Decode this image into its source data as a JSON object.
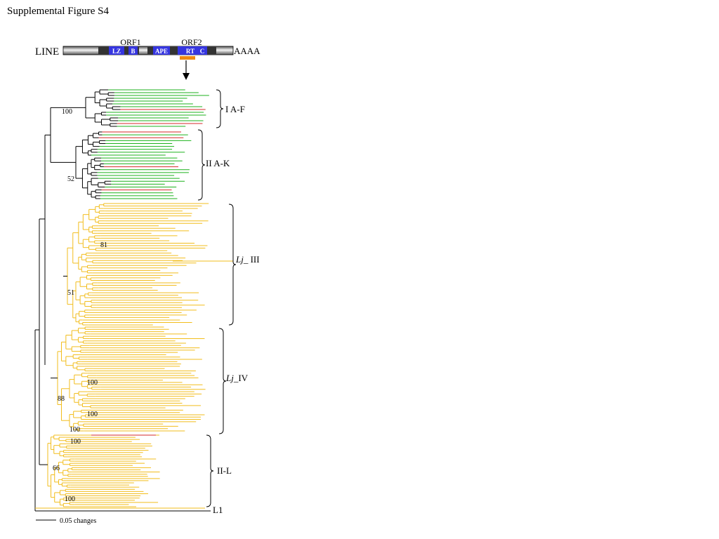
{
  "figure_title": "Supplemental Figure S4",
  "colors": {
    "black": "#000000",
    "green": "#1db21d",
    "red": "#d42a2a",
    "yellow": "#f2bd1c",
    "domain_blue": "#3535e0",
    "probe_orange": "#ef8a12"
  },
  "line_diagram": {
    "element_label": "LINE",
    "polya_label": "AAAA",
    "orf_labels": [
      "ORF1",
      "ORF2"
    ],
    "domains": [
      "LZ",
      "B",
      "APE",
      "RT",
      "C"
    ]
  },
  "clades": [
    {
      "label_main": "",
      "label_rest": "I A-F"
    },
    {
      "label_main": "",
      "label_rest": "II A-K"
    },
    {
      "label_main": "Lj_",
      "label_rest": " III"
    },
    {
      "label_main": "Lj_",
      "label_rest": "IV"
    },
    {
      "label_main": "",
      "label_rest": "II-L"
    },
    {
      "label_main": "",
      "label_rest": "L1"
    }
  ],
  "bootstrap_values": [
    "100",
    "52",
    "81",
    "51",
    "100",
    "88",
    "100",
    "100",
    "100",
    "66",
    "100"
  ],
  "scale_bar_label": "0.05 changes"
}
